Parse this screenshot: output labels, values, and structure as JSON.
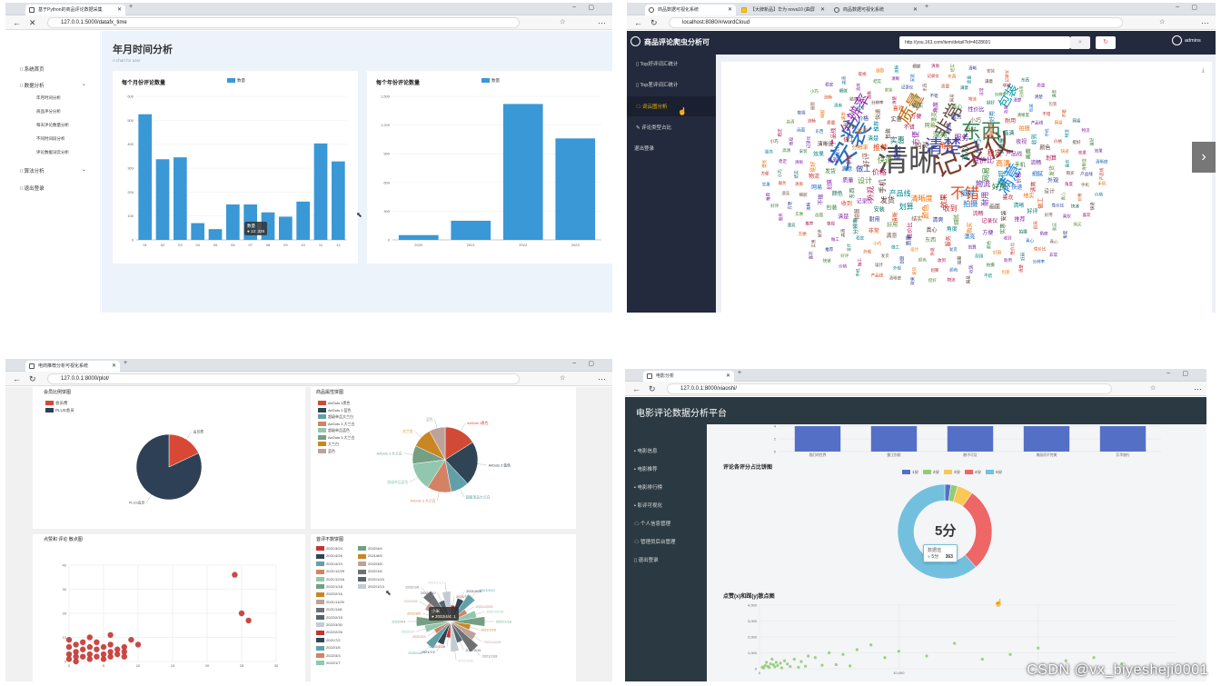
{
  "q1": {
    "tab_title": "基于Python的商品评论数据采集",
    "url": "127.0.0.1:5000/datafx_time",
    "sidebar": [
      {
        "label": "系统首页",
        "level": 1
      },
      {
        "label": "数据分析",
        "level": 1
      },
      {
        "label": "年月时间分析",
        "level": 2
      },
      {
        "label": "商品评分分析",
        "level": 2
      },
      {
        "label": "每天评论数量分析",
        "level": 2
      },
      {
        "label": "不同时间段分析",
        "level": 2
      },
      {
        "label": "评论数据词云分析",
        "level": 2
      },
      {
        "label": "算法分析",
        "level": 1
      },
      {
        "label": "退出登录",
        "level": 1
      }
    ],
    "page_title": "年月时间分析",
    "page_subtitle": "A chart for user",
    "chart1_title": "每个月份评论数量",
    "chart2_title": "每个年份评论数量",
    "legend_label": "数量",
    "tooltip_title": "数量",
    "tooltip_value": "● 12: 328"
  },
  "q2": {
    "tabs": [
      "商品数据可视化系统",
      "【大牌新品】华为 nova10 (曲屏",
      "商品数据可视化系统"
    ],
    "url": "localhost:8080/#/wordCloud",
    "app_title": "商品评论爬虫分析可",
    "search_value": "http://you.163.com/item/detail?id=4028691",
    "user": "admins",
    "menu": [
      "Top好评词汇统计",
      "Top差评词汇统计",
      "词云图分析",
      "评论类型占比",
      "退出登录"
    ],
    "big_words": [
      "清晰",
      "安装",
      "记录仪",
      "东西",
      "质量",
      "满意",
      "非常",
      "分辨率",
      "清楚",
      "包装",
      "不错",
      "网易",
      "物流",
      "挺好",
      "效果",
      "清晰度",
      "产品线",
      "手机",
      "价格",
      "快递",
      "喜欢",
      "购买",
      "角度",
      "真心",
      "性价比",
      "好用",
      "耐用",
      "拍摄",
      "收到",
      "颜色",
      "划算",
      "发货",
      "外观",
      "设计",
      "做工",
      "好评",
      "推荐",
      "实惠",
      "方便",
      "漂亮",
      "服务",
      "小巧",
      "稳定",
      "高清",
      "夜视",
      "画面",
      "流畅",
      "细腻",
      "清爽",
      "结实"
    ]
  },
  "q3": {
    "tab_title": "电商推荐分析可视化系统",
    "url": "127.0.0.1:8000/plot/",
    "p1_title": "会员比例饼图",
    "p1_legend": [
      "会员费",
      "PLUS会员"
    ],
    "p1_labels": [
      "会员费",
      "PLUS会员"
    ],
    "p2_title": "商品属性饼图",
    "p2_legend": [
      "AirDots 3黑色",
      "AirDots 3 蓝色",
      "超级单品大兰白",
      "AirDots 3 大兰白",
      "超级单品蓝色",
      "AirDots 3 大兰白",
      "大兰白",
      "蓝色"
    ],
    "p3_title": "点赞和 评论 散点图",
    "p4_title": "首评不数饼图",
    "p4_legend_left": [
      "2021/3/24",
      "2021/4/26",
      "2021/4/10",
      "2021/12/29",
      "2021/12/16",
      "2022/1/18",
      "2022/2/16",
      "2021/11/25",
      "2021/11/8",
      "2022/2/15",
      "2022/3/30",
      "2022/2/26",
      "2021/7/2",
      "2022/1/5",
      "2022/3/3",
      "2022/1/7"
    ],
    "p4_legend_right": [
      "2022/4/4",
      "2021/8/5",
      "2022/3/8",
      "2022/1/6",
      "2022/1/10",
      "2022/1/13"
    ],
    "tooltip_title": "小米",
    "tooltip_value": "● 2022/4/4: 1"
  },
  "q4": {
    "tab_title": "电影分析",
    "url": "127.0.0.1:8000/xiaoshi/",
    "platform_title": "电影评论数据分析平台",
    "menu": [
      "电影信息",
      "电影推荐",
      "电影排行榜",
      "影评可视化",
      "个人信息管理",
      "管理员后台管理",
      "退出登录"
    ],
    "bar_categories": [
      "我们的世界",
      "霸王别姬",
      "触不可及",
      "美丽而不完美",
      "芳华旅行"
    ],
    "donut_title": "评论各评分占比饼图",
    "donut_legend": [
      "1分",
      "2分",
      "3分",
      "4分",
      "5分"
    ],
    "donut_center": "5分",
    "donut_tooltip_title": "数据值",
    "donut_tooltip_label": "5分",
    "donut_tooltip_value": "363",
    "scatter_title": "点赞(x)和踩(y)散点图"
  },
  "watermark": "CSDN @vx_biyesheji0001",
  "chart_data": [
    {
      "type": "bar",
      "title": "每个月份评论数量",
      "categories": [
        "01",
        "02",
        "03",
        "04",
        "05",
        "06",
        "07",
        "08",
        "09",
        "10",
        "11",
        "12"
      ],
      "series": [
        {
          "name": "数量",
          "values": [
            525,
            337,
            345,
            70,
            45,
            148,
            148,
            115,
            97,
            160,
            403,
            328
          ]
        }
      ],
      "ylim": [
        0,
        600
      ],
      "yticks": [
        0,
        100,
        200,
        300,
        400,
        500,
        600
      ],
      "color": "#3a98d6"
    },
    {
      "type": "bar",
      "title": "每个年份评论数量",
      "categories": [
        "2020",
        "2021",
        "2022",
        "2023"
      ],
      "series": [
        {
          "name": "数量",
          "values": [
            50,
            200,
            1420,
            1060
          ]
        }
      ],
      "ylim": [
        0,
        1500
      ],
      "yticks": [
        0,
        300,
        600,
        900,
        1200,
        1500
      ],
      "ytick_labels": [
        "0",
        "300",
        "600",
        "900",
        "1,200",
        "1,500"
      ],
      "color": "#3a98d6"
    },
    {
      "type": "pie",
      "title": "会员比例饼图",
      "categories": [
        "会员费",
        "PLUS会员"
      ],
      "values": [
        18,
        82
      ],
      "colors": [
        "#d94835",
        "#2e4056"
      ]
    },
    {
      "type": "pie",
      "title": "商品属性饼图",
      "categories": [
        "AirDots 3黑色",
        "AirDots 3 蓝色",
        "超级单品大兰白",
        "AirDots 3 大兰白",
        "超级单品蓝色",
        "AirDots 3 大兰白",
        "大兰白",
        "蓝色"
      ],
      "values": [
        16,
        22,
        9,
        12,
        14,
        9,
        10,
        8
      ],
      "colors": [
        "#d14a35",
        "#2f4554",
        "#61a0a8",
        "#d48265",
        "#91c7ae",
        "#749f83",
        "#ca8622",
        "#bda29a"
      ]
    },
    {
      "type": "scatter",
      "title": "点赞和 评论 散点图",
      "xlim": [
        0,
        30
      ],
      "ylim": [
        0,
        40
      ],
      "xticks": [
        0,
        5,
        10,
        15,
        20,
        25,
        30
      ],
      "yticks": [
        0,
        10,
        20,
        30,
        40
      ],
      "points": [
        [
          0,
          1
        ],
        [
          0,
          3
        ],
        [
          0,
          6
        ],
        [
          0,
          9
        ],
        [
          1,
          2
        ],
        [
          1,
          4
        ],
        [
          1,
          7
        ],
        [
          1,
          0
        ],
        [
          2,
          2
        ],
        [
          2,
          5
        ],
        [
          2,
          8
        ],
        [
          3,
          1
        ],
        [
          3,
          3
        ],
        [
          3,
          6
        ],
        [
          3,
          10
        ],
        [
          4,
          2
        ],
        [
          4,
          5
        ],
        [
          4,
          8
        ],
        [
          5,
          1
        ],
        [
          5,
          3
        ],
        [
          5,
          6
        ],
        [
          6,
          2
        ],
        [
          6,
          4
        ],
        [
          6,
          7
        ],
        [
          6,
          11
        ],
        [
          7,
          3
        ],
        [
          7,
          5
        ],
        [
          8,
          2
        ],
        [
          8,
          4
        ],
        [
          8,
          6
        ],
        [
          9,
          9
        ],
        [
          10,
          7
        ],
        [
          24,
          36
        ],
        [
          25,
          20
        ],
        [
          26,
          17
        ]
      ],
      "color": "#c23531"
    },
    {
      "type": "pie",
      "title": "首评不数饼图",
      "categories": [
        "2021/3/24",
        "2021/4/26",
        "2021/4/10",
        "2021/12/29",
        "2021/12/16",
        "2022/1/18",
        "2022/2/16",
        "2021/11/25",
        "2021/11/8",
        "2022/2/15",
        "2022/3/30",
        "2022/2/26",
        "2021/7/2",
        "2022/1/5",
        "2022/3/3",
        "2022/1/7",
        "2022/4/4",
        "2021/8/5",
        "2022/3/8",
        "2022/1/6",
        "2022/1/10",
        "2022/1/13"
      ],
      "values": [
        1,
        1,
        1,
        1,
        1,
        1,
        1,
        1,
        1,
        1,
        1,
        1,
        1,
        1,
        1,
        1,
        1,
        1,
        1,
        1,
        1,
        1
      ],
      "rose": true
    },
    {
      "type": "bar",
      "title": "",
      "categories": [
        "我们的世界",
        "霸王别姬",
        "触不可及",
        "美丽而不完美",
        "芳华旅行"
      ],
      "values": [
        4,
        4,
        4,
        4,
        4
      ],
      "ylim": [
        0,
        4
      ],
      "color": "#5470c6"
    },
    {
      "type": "pie",
      "title": "评论各评分占比饼图",
      "categories": [
        "1分",
        "2分",
        "3分",
        "4分",
        "5分"
      ],
      "values": [
        12,
        14,
        32,
        170,
        363
      ],
      "colors": [
        "#5470c6",
        "#91cc75",
        "#fac858",
        "#ee6666",
        "#73c0de"
      ],
      "donut": true
    },
    {
      "type": "scatter",
      "title": "点赞(x)和踩(y)散点图",
      "xlim": [
        0,
        30000
      ],
      "ylim": [
        0,
        4000
      ],
      "xticks": [
        0,
        10000,
        20000
      ],
      "xtick_labels": [
        "0",
        "10,000",
        "20,000"
      ],
      "yticks": [
        0,
        1000,
        2000,
        3000,
        4000
      ],
      "ytick_labels": [
        "0",
        "1,000",
        "2,000",
        "3,000",
        "4,000"
      ],
      "points": [
        [
          200,
          100
        ],
        [
          400,
          200
        ],
        [
          600,
          150
        ],
        [
          800,
          300
        ],
        [
          1000,
          250
        ],
        [
          1200,
          400
        ],
        [
          1500,
          350
        ],
        [
          1800,
          500
        ],
        [
          2000,
          300
        ],
        [
          2500,
          600
        ],
        [
          3000,
          450
        ],
        [
          3500,
          800
        ],
        [
          4000,
          700
        ],
        [
          5000,
          1000
        ],
        [
          6000,
          900
        ],
        [
          7000,
          1200
        ],
        [
          8000,
          1500
        ],
        [
          9000,
          700
        ],
        [
          10000,
          1100
        ],
        [
          12000,
          800
        ],
        [
          14000,
          1600
        ],
        [
          16000,
          600
        ],
        [
          18000,
          900
        ],
        [
          20000,
          1300
        ],
        [
          22000,
          500
        ],
        [
          24000,
          700
        ],
        [
          26000,
          300
        ],
        [
          300,
          50
        ],
        [
          700,
          80
        ],
        [
          1100,
          120
        ],
        [
          1600,
          60
        ],
        [
          2200,
          140
        ],
        [
          2800,
          90
        ],
        [
          3300,
          160
        ],
        [
          4500,
          220
        ],
        [
          5500,
          260
        ],
        [
          6500,
          180
        ],
        [
          500,
          400
        ],
        [
          900,
          600
        ],
        [
          1300,
          200
        ]
      ],
      "color": "#91cc75"
    }
  ]
}
